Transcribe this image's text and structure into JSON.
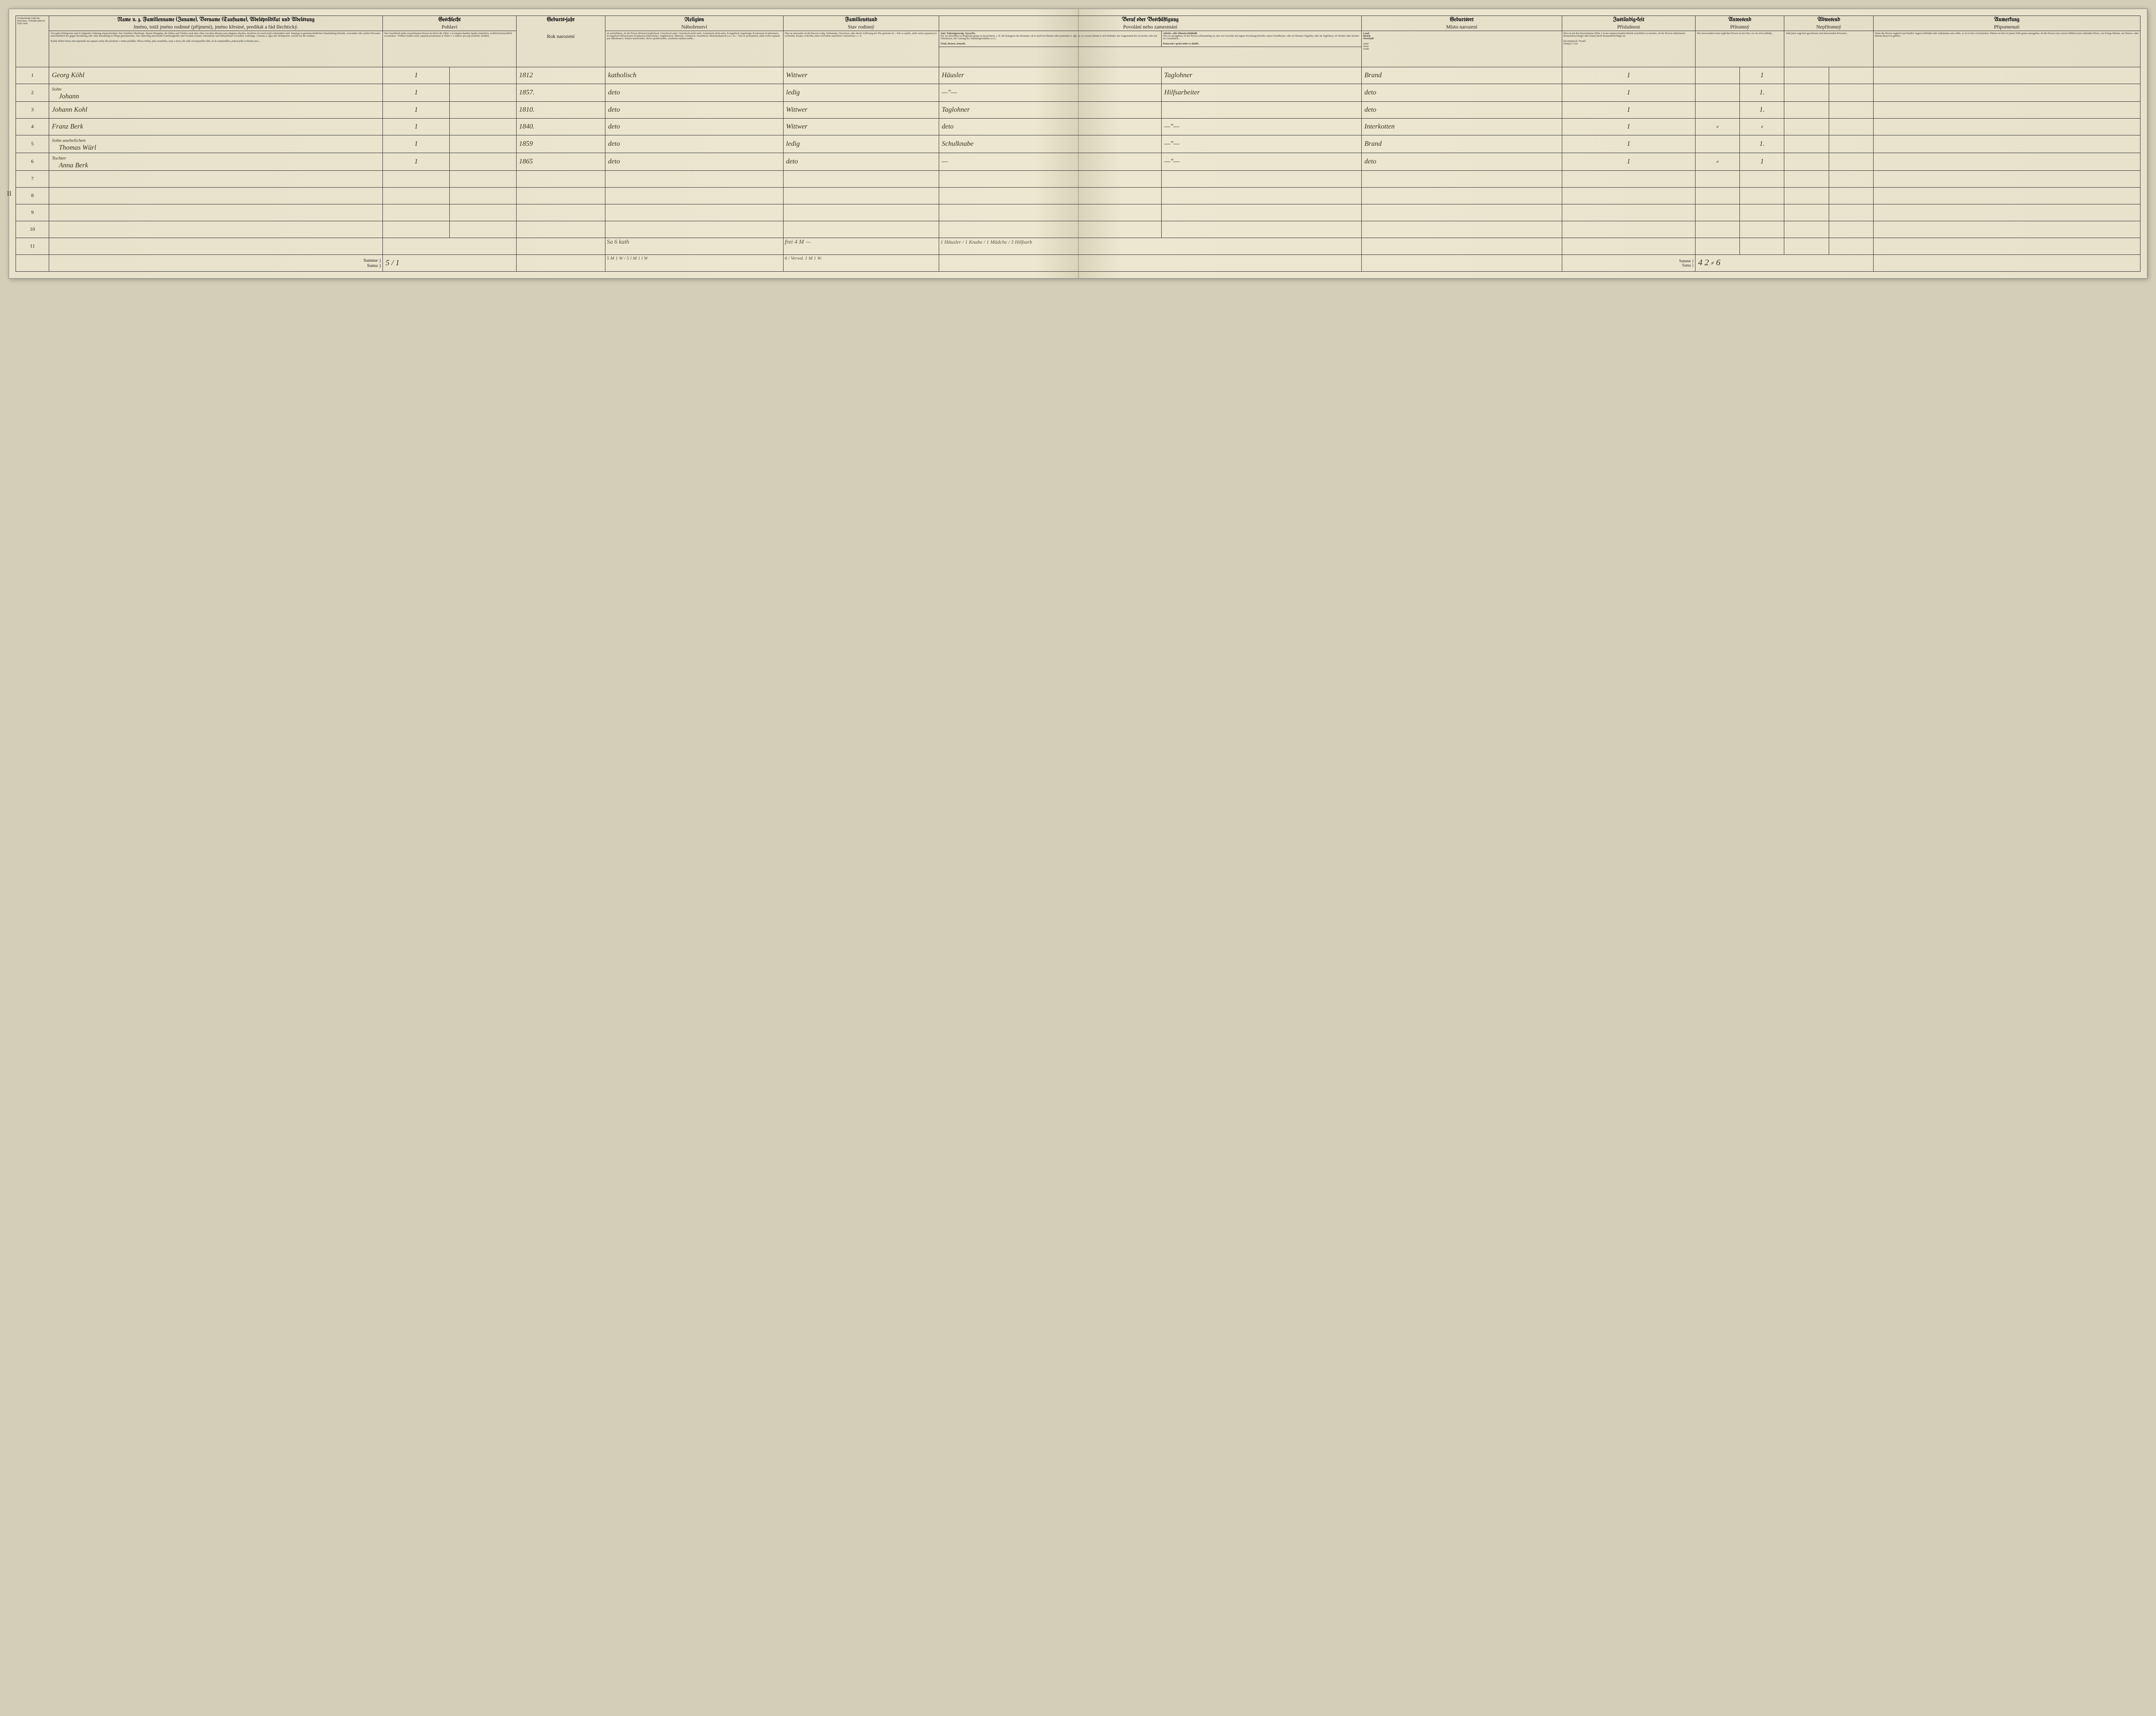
{
  "headers": {
    "name": {
      "de": "Name u. z. Familienname (Zuname), Vorname (Taufname), Adelsprädikat und Adelsrang",
      "cz": "Jméno, totiž jméno rodinné (příjmení), jméno křestné, predikát a řád šlechtický."
    },
    "sex": {
      "de": "Geschlecht",
      "cz": "Pohlaví"
    },
    "year": {
      "de": "Geburts-jahr",
      "cz": "Rok narození"
    },
    "religion": {
      "de": "Religion",
      "cz": "Náboženství"
    },
    "family": {
      "de": "Familienstand",
      "cz": "Stav rodinný"
    },
    "occupation": {
      "de": "Beruf oder Beschäftigung",
      "cz": "Povolání nebo zamestnání"
    },
    "birthplace": {
      "de": "Geburtsort",
      "cz": "Místo narození"
    },
    "zust": {
      "de": "Zuständig-keit",
      "cz": "Příslušnost"
    },
    "present": {
      "de": "Anwesend",
      "cz": "Přítomný"
    },
    "absent": {
      "de": "Abwesend",
      "cz": "Nepřítomný"
    },
    "note": {
      "de": "Anmerkung",
      "cz": "Připomenutí"
    }
  },
  "subheaders": {
    "occ_left": {
      "de": "Amt. Nahrungszweig. Gewerbe.",
      "cz": "Úřad, živnost, řemeslo."
    },
    "occ_right": {
      "de": "Arbeits- oder Dienstverhältniß.",
      "cz": "Postavení v práci nebo ve službě."
    },
    "birth_land": "Land",
    "birth_bezirk": "Bezirk",
    "birth_ort": "Ortschaft",
    "birth_zeme": "země",
    "birth_okres": "okres",
    "birth_osada": "osada",
    "zust_ein": "Ein-heimisch",
    "zust_fremd": "Fremd",
    "zust_dom": "Domácí",
    "zust_ciz": "Cizí"
  },
  "rows": [
    {
      "n": "1",
      "name": "Georg Köhl",
      "role": "",
      "sex": "1",
      "year": "1812",
      "rel": "katholisch",
      "fam": "Wittwer",
      "occ1": "Häusler",
      "occ2": "Taglohner",
      "birth": "Brand",
      "z1": "1",
      "z2": "",
      "p1": "1",
      "p2": "",
      "a1": "",
      "a2": ""
    },
    {
      "n": "2",
      "name": "Johann",
      "role": "Sohn",
      "sex": "1",
      "year": "1857.",
      "rel": "deto",
      "fam": "ledig",
      "occ1": "—\"—",
      "occ2": "Hilfsarbeiter",
      "birth": "deto",
      "z1": "1",
      "z2": "",
      "p1": "1.",
      "p2": "",
      "a1": "",
      "a2": ""
    },
    {
      "n": "3",
      "name": "Johann Kohl",
      "role": "",
      "sex": "1",
      "year": "1810.",
      "rel": "deto",
      "fam": "Wittwer",
      "occ1": "Taglohner",
      "occ2": "",
      "birth": "deto",
      "z1": "1",
      "z2": "",
      "p1": "1.",
      "p2": "",
      "a1": "",
      "a2": ""
    },
    {
      "n": "4",
      "name": "Franz Berk",
      "role": "",
      "sex": "1",
      "year": "1840.",
      "rel": "deto",
      "fam": "Wittwer",
      "occ1": "deto",
      "occ2": "—\"—",
      "birth": "Interkotten",
      "z1": "1",
      "z2": "⸗",
      "p1": "⸗",
      "p2": "",
      "a1": "",
      "a2": ""
    },
    {
      "n": "5",
      "name": "Thomas Würl",
      "role": "Sohn unehelichen",
      "sex": "1",
      "year": "1859",
      "rel": "deto",
      "fam": "ledig",
      "occ1": "Schulknabe",
      "occ2": "—\"—",
      "birth": "Brand",
      "z1": "1",
      "z2": "",
      "p1": "1.",
      "p2": "",
      "a1": "",
      "a2": ""
    },
    {
      "n": "6",
      "name": "Anna Berk",
      "role": "Tochter",
      "sex": "1",
      "year": "1865",
      "rel": "deto",
      "fam": "deto",
      "occ1": "—",
      "occ2": "—\"—",
      "birth": "deto",
      "z1": "1",
      "z2": "⸗",
      "p1": "1",
      "p2": "",
      "a1": "",
      "a2": ""
    },
    {
      "n": "7"
    },
    {
      "n": "8"
    },
    {
      "n": "9"
    },
    {
      "n": "10"
    },
    {
      "n": "11"
    }
  ],
  "summary": {
    "label": "Summe",
    "label_cz": "Suma",
    "sex_total": "5 / 1",
    "row11_rel": "Sa 6 kath",
    "row11_fam": "frei 4 M —",
    "row11_occ": "1 Häusler / 1 Knabe / 1 Mädche / 3 Hilfsarb",
    "rel_sum": "5 M 1 W / 5 l M 1 l W",
    "fam_sum": "6 / Verwd. 1 M 1 W.",
    "zust_total": "Summe / Suma",
    "totals": "4 2 ⸗ 6"
  },
  "margin": {
    "roman2": "II"
  },
  "fineprint": {
    "name_col": "Von jeder Wohnpartei sind in folgender Ordnung einzuschreiben: Das Familien-Oberhaupt, dessen Ehegattin, die Söhne und Töchter nach dem Alter von dem ältesten zum jüngsten abwärts, insoferne sie noch nicht verheirathet sind. Sonstige in gemeinschaftlicher Haushaltung lebende, verwandte oder andere Personen einschließlich der gegen Bezahlung oder ohne Bezahlung in Pflege genommenen. Nur zeitweilig anwesende Familienglieder oder Fremde (Gäste). Dienstleute und Hilfsarbeiter (Gesellen, Lehrlinge, Commis u. dgl.) der Wohnpartei, welche bei ihr wohnen...",
    "name_col_cz": "Každý držitel domu neb nájemník má zapsati osoby dle položené v tomto pořádku: Hlavu rodiny, jeho manželku, syny a dcery dle stáří od nejstaršího dítě, až do nejmladšího, pokud ještě svobodni jsou...",
    "sex_col": "Das Geschlecht jeder verzeichneten Person ist durch die Ziffer 1 in entsprechenden Spalte (männlich, weiblich) bemerklich zu machen. / Pohlaví každé osoby zapsané poznamená se číslicí 1 v rubrice pro jeji (mužské, ženské).",
    "rel_col": "ist aufzuführen, ob die Person Römisch-katholisch, Griechisch-unirt, Griechisch-nicht unirt, Armenisch-nicht unirt, Evangelisch Augsburger Konfession (Lutheraner), Evangelisch-Helvetischer Konfession (Reformirt), Anglikanisch, Menonit, Unitarisch, Israelitisch, Mohamedanisch u.s.f. ist. / Tuto se poznamená, zdali osoba zapsaná jest náboženství: římsko-katolického, řecko-sjednoceného, arménsko-sjednoceného...",
    "fam_col": "Hier ist einzusehn ob die Person Ledig, Verheiratet, Verwitwet, oder durch Auflösung der Ehe getrennt ist. / Zde se zapíše, zdali osoba zapsaná jest svobodná, ženatá, ovdovělá, nebo rozvodem manželství rozloučená u. t. d.",
    "occ_col": "Die Art derselben ist möglichst genau zu bezeichnen, z. B. die Kategorie des Beamten, ob er noch im Dienste oder pensionirt u. dgl. ist, in wessen Dienst er sich befindet, der Gegenstand des Gewerbes oder der Fabrikation, die Gattung des Handelsgeschäftes u.s.f...",
    "occ_col2": "Hier ist anzugeben, ob die Person selbstständig ist, also ein Gewerbe auf eigene Rechnung betreibt, einen Grundbesitz, oder im Monate (Taglohn, oder im Taglohne), ob Pächter oder Sachter im Grundstück...",
    "birth_col": "Hier ist mit den bezeichneten Ziffer 1 in der entsprechenden Rubrik ersichtlich zu machen, ob die Person einheimisch (heimatsberechtigt) oder fremd (nicht heimatsberechtigt) ist.",
    "note_col": "Wenn die Person zugleich (auf beiden Augen) erblindet oder taubstumm sein sollte, so ist es hier zu bemerken. Ebenso ist hier in jenem Falle genau anzugeben, ob die Person zum activen Militär (zum stehenden Heere, zur Kriegs-Marine, zur Heeres- oder Marine-Reserve) gehört..."
  }
}
